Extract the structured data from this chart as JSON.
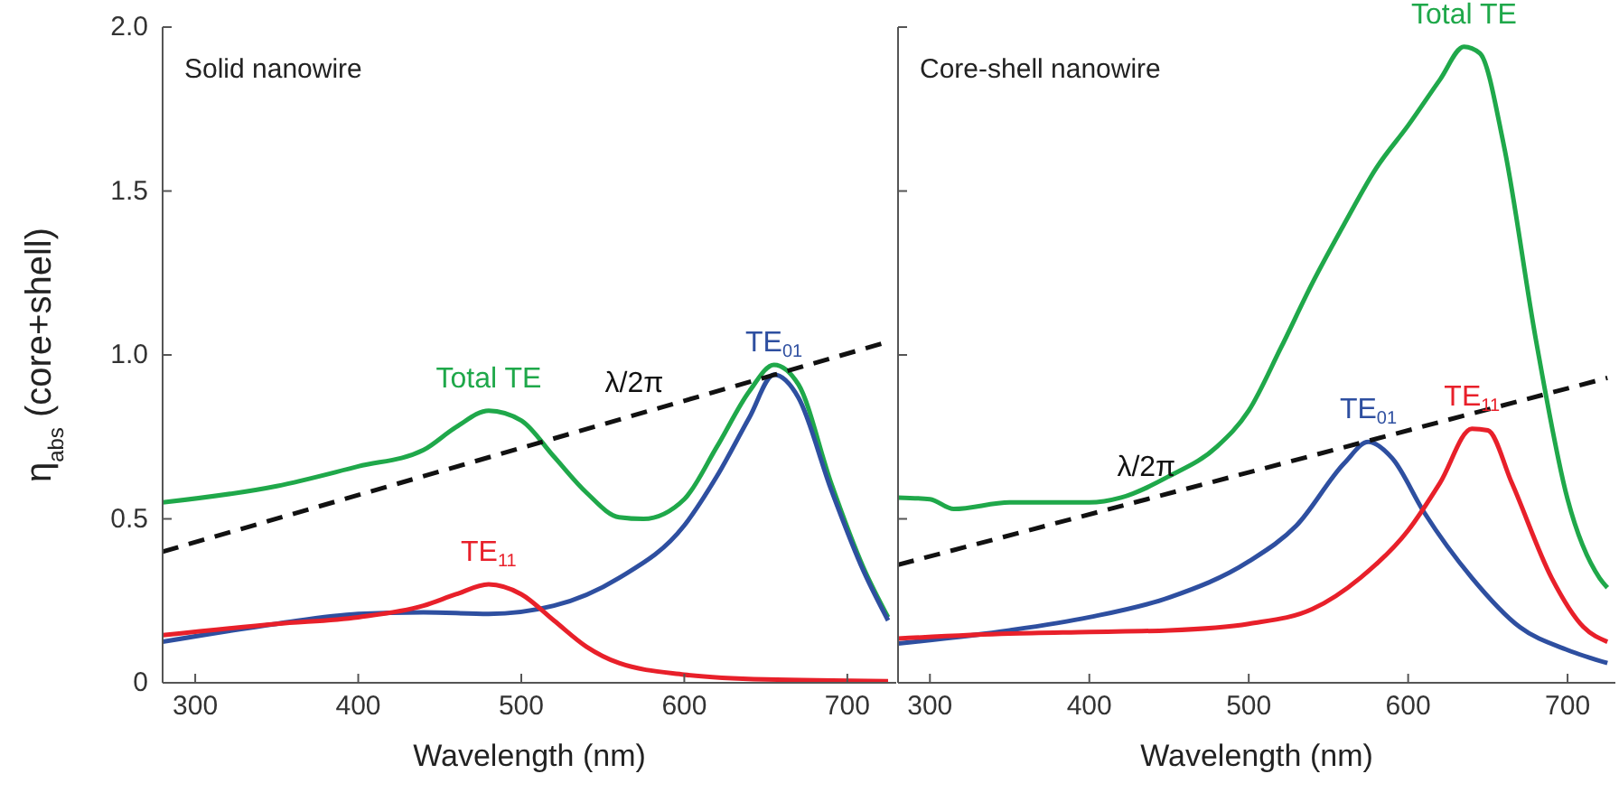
{
  "chart_data": [
    {
      "type": "line",
      "title": "Solid nanowire",
      "xlabel": "Wavelength (nm)",
      "ylabel": "η$_{abs}$ (core+shell)",
      "xlim": [
        280,
        730
      ],
      "xticks": [
        300,
        400,
        500,
        600,
        700
      ],
      "ylim": [
        0,
        2
      ],
      "yticks": [
        {
          "value": 0,
          "label": "0"
        },
        0.5,
        {
          "value": 1,
          "label": "1.0"
        },
        1.5,
        {
          "value": 2,
          "label": "2.0"
        }
      ],
      "series": [
        {
          "name": "Total TE",
          "color": "#1fa84a",
          "x": [
            280,
            350,
            400,
            440,
            460,
            480,
            500,
            520,
            540,
            560,
            575,
            600,
            620,
            640,
            655,
            670,
            690,
            710,
            725
          ],
          "values": [
            0.55,
            0.6,
            0.66,
            0.71,
            0.78,
            0.83,
            0.8,
            0.69,
            0.58,
            0.505,
            0.5,
            0.56,
            0.72,
            0.89,
            0.97,
            0.91,
            0.61,
            0.35,
            0.2
          ]
        },
        {
          "name": "TE$_{01}$",
          "color": "#2e4fa0",
          "x": [
            280,
            350,
            400,
            440,
            480,
            520,
            560,
            600,
            620,
            640,
            655,
            670,
            690,
            710,
            725
          ],
          "values": [
            0.125,
            0.18,
            0.21,
            0.215,
            0.21,
            0.235,
            0.32,
            0.48,
            0.63,
            0.81,
            0.94,
            0.87,
            0.59,
            0.34,
            0.19
          ]
        },
        {
          "name": "TE$_{11}$",
          "color": "#e8202a",
          "x": [
            280,
            350,
            400,
            440,
            460,
            480,
            500,
            520,
            540,
            560,
            600,
            650,
            725
          ],
          "values": [
            0.145,
            0.18,
            0.2,
            0.235,
            0.27,
            0.3,
            0.27,
            0.19,
            0.11,
            0.06,
            0.025,
            0.01,
            0.005
          ]
        },
        {
          "name": "λ/2π",
          "color": "#111111",
          "line_style": "dashed",
          "x": [
            280,
            725
          ],
          "values": [
            0.4,
            1.04
          ]
        }
      ]
    },
    {
      "type": "line",
      "title": "Core-shell nanowire",
      "xlabel": "Wavelength (nm)",
      "xlim": [
        280,
        730
      ],
      "xticks": [
        300,
        400,
        500,
        600,
        700
      ],
      "ylim": [
        0,
        2
      ],
      "yticks": [
        0,
        0.5,
        1,
        1.5,
        2
      ],
      "tick_labels": "x",
      "series": [
        {
          "name": "Total TE",
          "color": "#1fa84a",
          "x": [
            280,
            300,
            315,
            350,
            400,
            420,
            450,
            480,
            500,
            520,
            540,
            560,
            580,
            600,
            620,
            635,
            645,
            660,
            680,
            700,
            720,
            725
          ],
          "values": [
            0.565,
            0.56,
            0.53,
            0.55,
            0.55,
            0.565,
            0.63,
            0.72,
            0.83,
            1.02,
            1.22,
            1.4,
            1.57,
            1.7,
            1.84,
            1.94,
            1.92,
            1.64,
            1.05,
            0.56,
            0.32,
            0.29
          ]
        },
        {
          "name": "TE$_{01}$",
          "color": "#2e4fa0",
          "x": [
            280,
            350,
            400,
            450,
            500,
            530,
            560,
            575,
            590,
            610,
            640,
            670,
            700,
            725
          ],
          "values": [
            0.12,
            0.16,
            0.2,
            0.26,
            0.37,
            0.48,
            0.67,
            0.735,
            0.685,
            0.52,
            0.32,
            0.17,
            0.1,
            0.06
          ]
        },
        {
          "name": "TE$_{11}$",
          "color": "#e8202a",
          "x": [
            280,
            350,
            400,
            450,
            500,
            540,
            570,
            600,
            620,
            640,
            650,
            665,
            690,
            710,
            725
          ],
          "values": [
            0.135,
            0.15,
            0.155,
            0.16,
            0.18,
            0.225,
            0.32,
            0.465,
            0.61,
            0.775,
            0.77,
            0.61,
            0.32,
            0.17,
            0.125
          ]
        },
        {
          "name": "λ/2π",
          "color": "#111111",
          "line_style": "dashed",
          "x": [
            280,
            725
          ],
          "values": [
            0.36,
            0.93
          ]
        }
      ]
    }
  ]
}
